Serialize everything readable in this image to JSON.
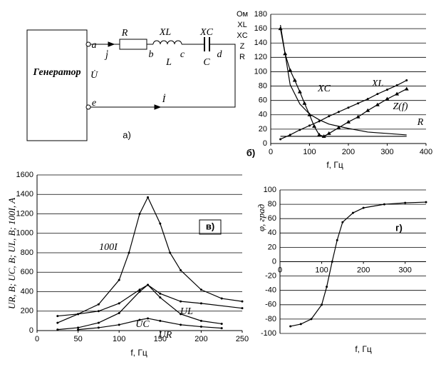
{
  "diagram": {
    "generator": "Генератор",
    "labels": [
      "a",
      "j̇",
      "R",
      "XL",
      "XC",
      "b",
      "L",
      "c",
      "C",
      "d",
      "U̇",
      "e",
      "İ"
    ],
    "caption": "а)"
  },
  "chart_data": [
    {
      "type": "line",
      "title": "б)",
      "ylabel": [
        "Ом",
        "XL",
        "XC",
        "Z",
        "R"
      ],
      "xlabel": "f, Гц",
      "xlim": [
        0,
        400
      ],
      "xticks": [
        0,
        100,
        200,
        300,
        400
      ],
      "ylim": [
        0,
        180
      ],
      "yticks": [
        0,
        20,
        40,
        60,
        80,
        100,
        120,
        140,
        160,
        180
      ],
      "grid": true,
      "annotations": [
        "XC",
        "XL",
        "Z(f)",
        "R"
      ],
      "series": [
        {
          "name": "XC",
          "color": "#000000",
          "marker": "none",
          "x": [
            25,
            50,
            75,
            100,
            125,
            150,
            175,
            200,
            250,
            300,
            350
          ],
          "values": [
            165,
            82,
            55,
            41,
            33,
            27,
            24,
            21,
            16,
            14,
            12
          ]
        },
        {
          "name": "XL",
          "color": "#000000",
          "marker": "dot",
          "x": [
            25,
            50,
            75,
            100,
            125,
            150,
            175,
            200,
            225,
            250,
            275,
            300,
            325,
            350
          ],
          "values": [
            6,
            12,
            19,
            25,
            31,
            38,
            44,
            50,
            56,
            62,
            69,
            75,
            81,
            88
          ]
        },
        {
          "name": "Z(f)",
          "color": "#000000",
          "marker": "triangle",
          "x": [
            25,
            37,
            50,
            62,
            75,
            87,
            100,
            112,
            125,
            137,
            150,
            175,
            200,
            225,
            250,
            275,
            300,
            325,
            350
          ],
          "values": [
            160,
            125,
            102,
            88,
            72,
            56,
            40,
            24,
            12,
            10,
            14,
            22,
            30,
            37,
            46,
            54,
            62,
            69,
            76
          ]
        },
        {
          "name": "R",
          "color": "#000000",
          "marker": "none",
          "x": [
            25,
            350
          ],
          "values": [
            10,
            10
          ]
        }
      ]
    },
    {
      "type": "line",
      "title": "в)",
      "ylabel": "UR, B; UC, B; UL, B; 100I, A",
      "xlabel": "f, Гц",
      "xlim": [
        0,
        250
      ],
      "xticks": [
        0,
        50,
        100,
        150,
        200,
        250
      ],
      "ylim": [
        0,
        1600
      ],
      "yticks": [
        0,
        200,
        400,
        600,
        800,
        1000,
        1200,
        1400,
        1600
      ],
      "grid": true,
      "annotations": [
        "100I",
        "UL",
        "UC",
        "UR"
      ],
      "series": [
        {
          "name": "100I",
          "color": "#000000",
          "marker": "dot",
          "x": [
            25,
            50,
            75,
            100,
            112,
            125,
            135,
            150,
            162,
            175,
            200,
            225,
            250
          ],
          "values": [
            80,
            170,
            270,
            520,
            800,
            1200,
            1370,
            1100,
            800,
            620,
            420,
            330,
            300
          ]
        },
        {
          "name": "UL",
          "color": "#000000",
          "marker": "dot",
          "x": [
            25,
            50,
            75,
            100,
            125,
            135,
            150,
            175,
            200,
            250
          ],
          "values": [
            10,
            30,
            80,
            180,
            400,
            470,
            380,
            300,
            280,
            230
          ]
        },
        {
          "name": "UC",
          "color": "#000000",
          "marker": "dot",
          "x": [
            25,
            50,
            75,
            100,
            125,
            135,
            150,
            175,
            200,
            225
          ],
          "values": [
            150,
            170,
            200,
            280,
            420,
            470,
            340,
            170,
            100,
            70
          ]
        },
        {
          "name": "UR",
          "color": "#000000",
          "marker": "dot",
          "x": [
            50,
            75,
            100,
            125,
            135,
            150,
            175,
            200,
            225
          ],
          "values": [
            10,
            30,
            60,
            110,
            125,
            100,
            60,
            40,
            25
          ]
        }
      ]
    },
    {
      "type": "line",
      "title": "г)",
      "ylabel": "φ, град",
      "xlabel": "f, Гц",
      "xlim": [
        0,
        350
      ],
      "xticks": [
        0,
        100,
        200,
        300
      ],
      "ylim": [
        -100,
        100
      ],
      "yticks": [
        -100,
        -80,
        -60,
        -40,
        -20,
        0,
        20,
        40,
        60,
        80,
        100
      ],
      "grid": true,
      "annotations": [],
      "series": [
        {
          "name": "φ",
          "color": "#000000",
          "marker": "dot",
          "x": [
            25,
            50,
            75,
            100,
            112,
            125,
            137,
            150,
            175,
            200,
            250,
            300,
            350
          ],
          "values": [
            -90,
            -87,
            -80,
            -60,
            -35,
            0,
            30,
            55,
            68,
            75,
            80,
            82,
            83
          ]
        }
      ]
    }
  ]
}
